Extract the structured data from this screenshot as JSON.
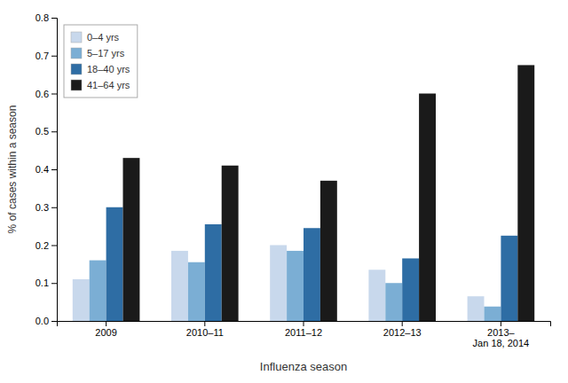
{
  "chart_data": {
    "type": "bar",
    "xlabel": "Influenza season",
    "ylabel": "% of cases within a season",
    "categories": [
      "2009",
      "2010–11",
      "2011–12",
      "2012–13",
      "2013–\nJan 18, 2014"
    ],
    "series": [
      {
        "name": "0–4 yrs",
        "color": "#c8d8ec",
        "values": [
          0.11,
          0.185,
          0.2,
          0.135,
          0.065
        ]
      },
      {
        "name": "5–17 yrs",
        "color": "#7baed4",
        "values": [
          0.16,
          0.155,
          0.185,
          0.1,
          0.038
        ]
      },
      {
        "name": "18–40 yrs",
        "color": "#2e6da4",
        "values": [
          0.3,
          0.255,
          0.245,
          0.165,
          0.225
        ]
      },
      {
        "name": "41–64 yrs",
        "color": "#1a1a1a",
        "values": [
          0.43,
          0.41,
          0.37,
          0.6,
          0.675
        ]
      }
    ],
    "ylim": [
      0,
      0.8
    ],
    "yticks": [
      {
        "value": 0,
        "label": "0.0"
      },
      0.1,
      0.2,
      0.3,
      0.4,
      0.5,
      0.6,
      0.7,
      0.8
    ],
    "legend": "upper left",
    "grid": false
  }
}
